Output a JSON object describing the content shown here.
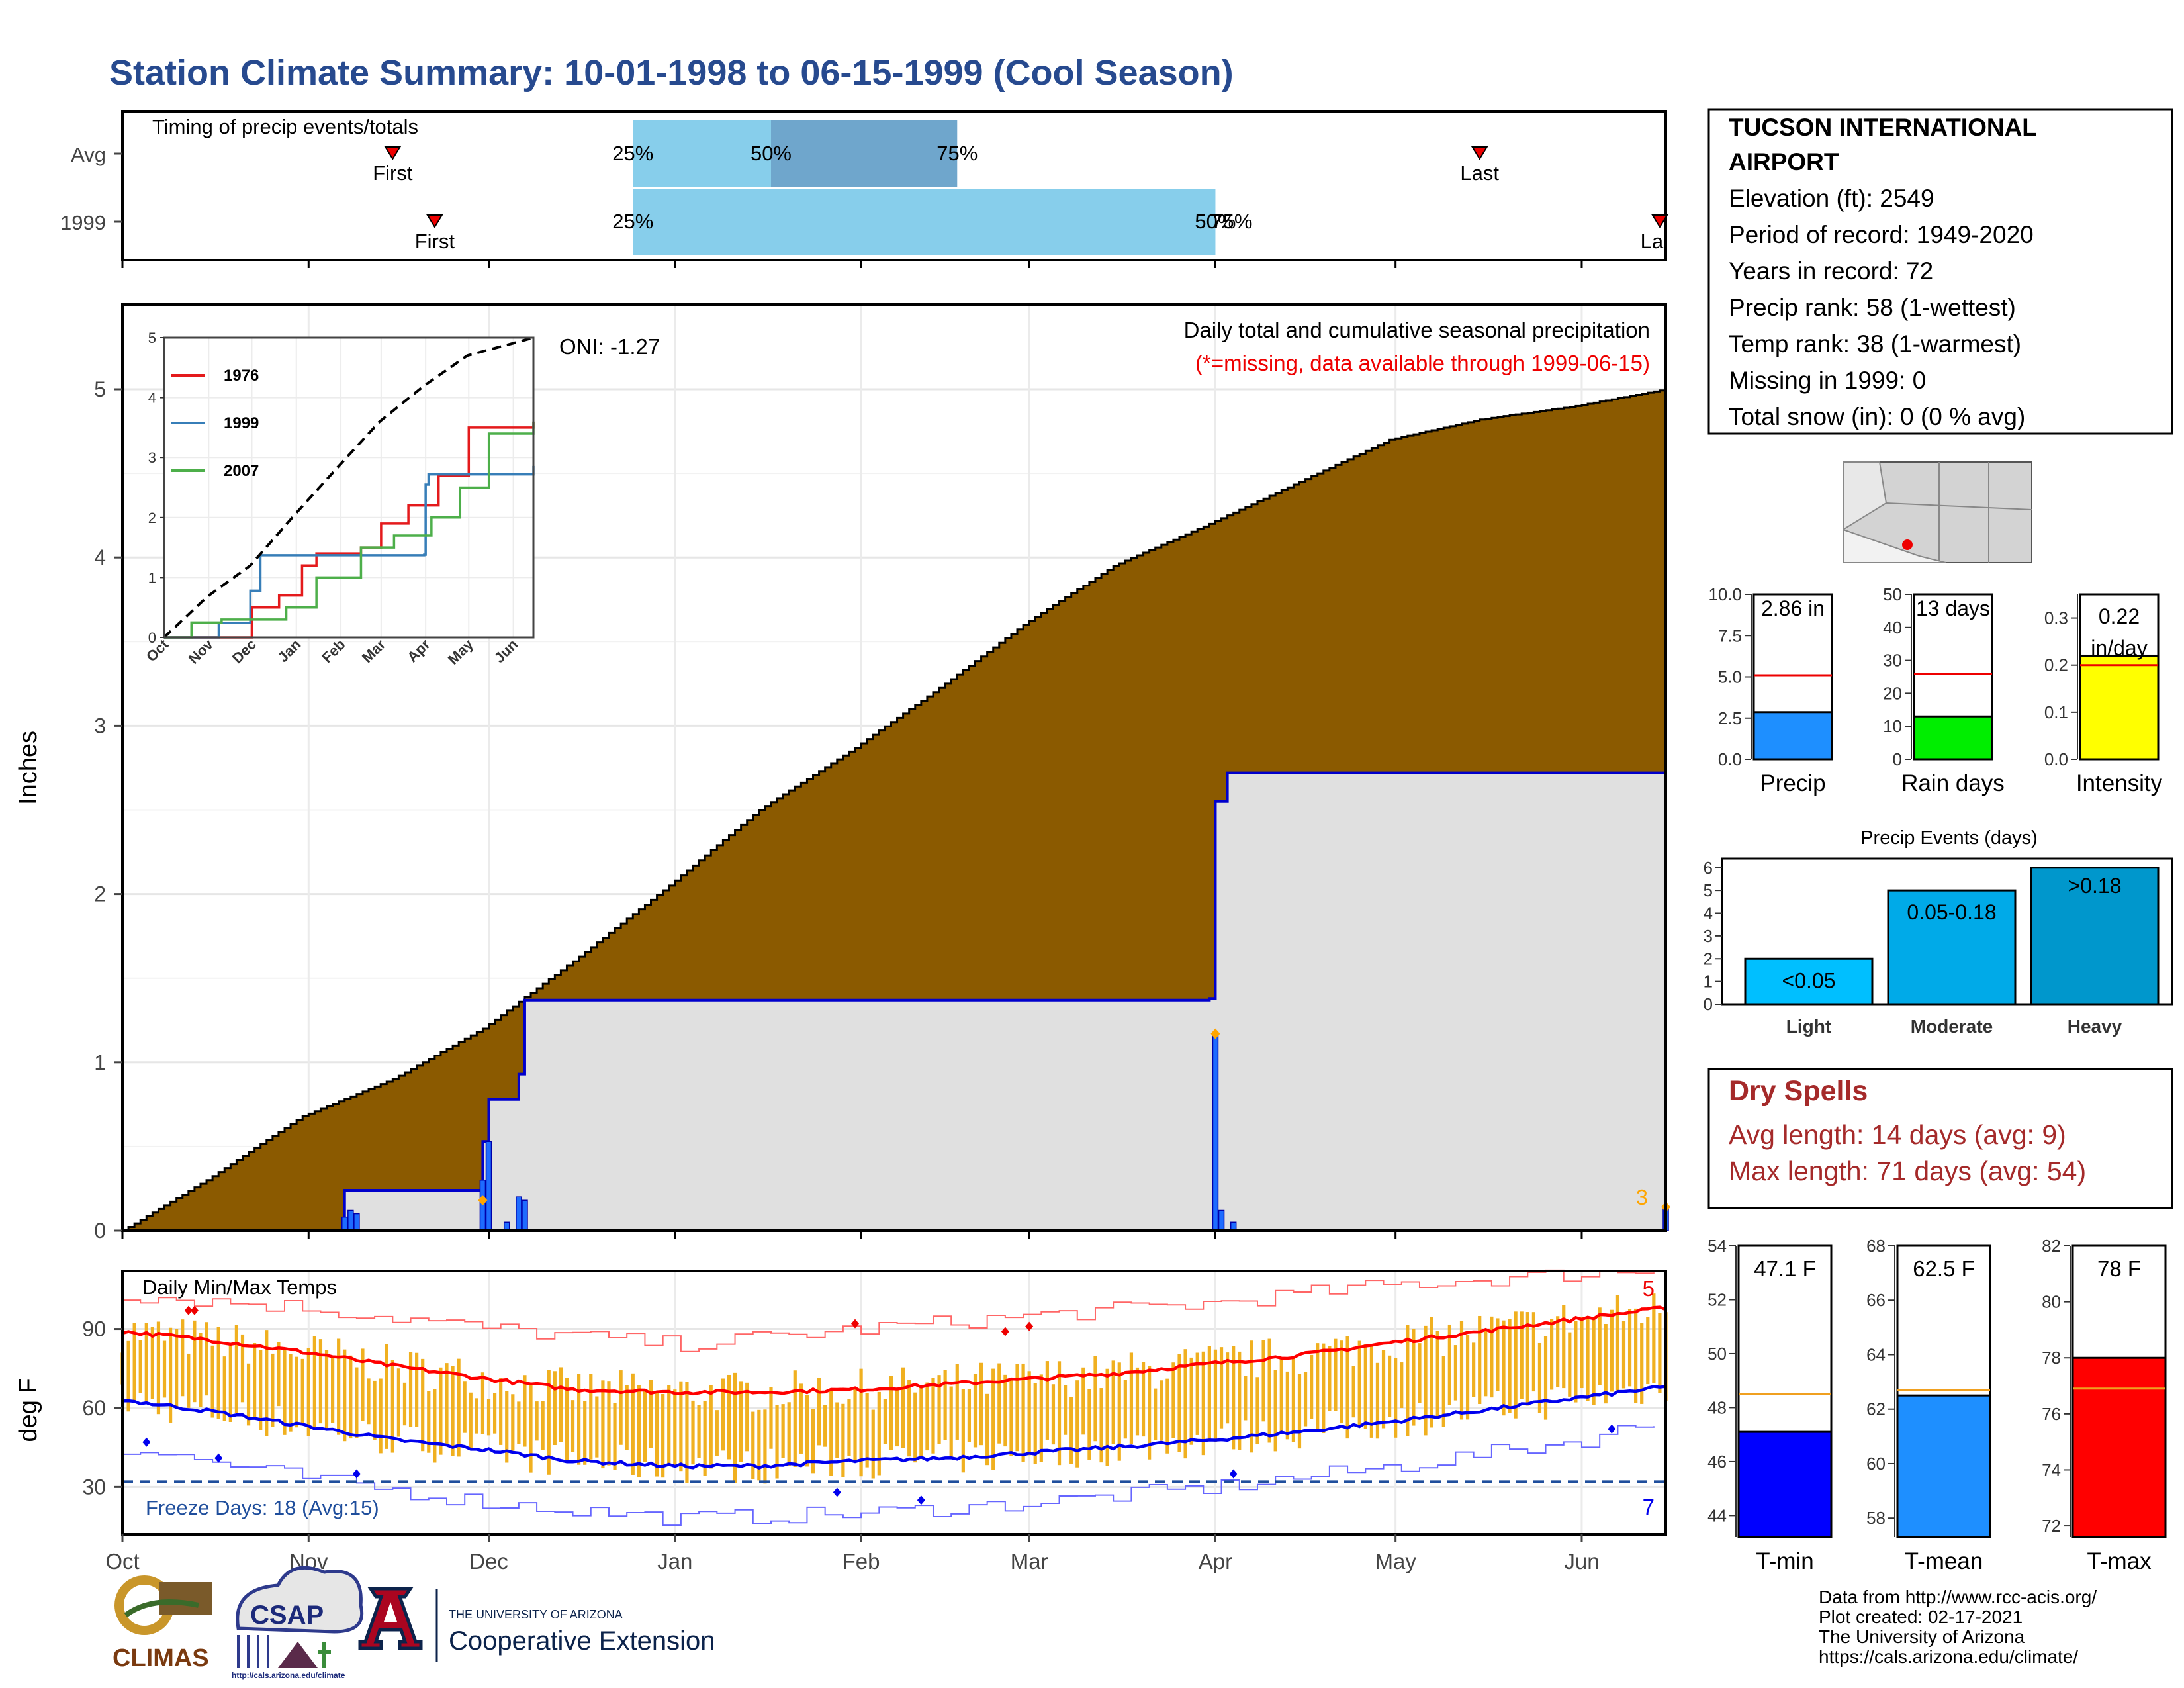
{
  "title": "Station Climate Summary: 10-01-1998 to 06-15-1999 (Cool Season)",
  "timing": {
    "label": "Timing of precip events/totals",
    "rows": [
      {
        "name": "Avg",
        "first_label": "First",
        "last_label": "Last",
        "first_date": "1998-11-15",
        "last_date": "1999-05-15",
        "p25_label": "25%",
        "p50_label": "50%",
        "p75_label": "75%",
        "p25_date": "1998-12-25",
        "p50_date": "1999-01-17",
        "p75_date": "1999-02-17"
      },
      {
        "name": "1999",
        "first_label": "First",
        "last_label": "Last",
        "first_date": "1998-11-22",
        "last_date": "1999-06-14",
        "p25_label": "25%",
        "p50_label": "50%",
        "p75_label": "75%",
        "p25_date": "1998-12-25",
        "p50_date": "1999-04-01",
        "p75_date": "1999-04-01"
      }
    ]
  },
  "station": {
    "name": "TUCSON INTERNATIONAL AIRPORT",
    "lines": [
      "Elevation (ft): 2549",
      "Period of record: 1949-2020",
      "Years in record: 72",
      "Precip rank: 58 (1-wettest)",
      "Temp rank: 38 (1-warmest)",
      "Missing in 1999: 0",
      "Total snow (in): 0 (0 % avg)"
    ]
  },
  "precip_panel": {
    "ylabel": "Inches",
    "oni_label": "ONI: -1.27",
    "title": "Daily total and cumulative seasonal precipitation",
    "subtitle": "(*=missing, data available through 1999-06-15)",
    "corner_label": "3",
    "y_ticks": [
      "0",
      "1",
      "2",
      "3",
      "4",
      "5"
    ],
    "colors": {
      "avg_fill": "#8b5a00",
      "year_fill": "#e0e0e0",
      "year_line": "#0000cc",
      "daily_bar": "#1e6cff",
      "max_marker": "#ffa500"
    }
  },
  "chart_data": [
    {
      "type": "area",
      "title": "Daily total and cumulative seasonal precipitation",
      "ylabel": "Inches",
      "ylim": [
        0,
        5.5
      ],
      "series": [
        {
          "name": "Avg",
          "x": [
            "1998-10-01",
            "1998-10-15",
            "1998-10-31",
            "1998-11-15",
            "1998-11-30",
            "1998-12-15",
            "1998-12-31",
            "1999-01-15",
            "1999-01-31",
            "1999-02-15",
            "1999-02-28",
            "1999-03-15",
            "1999-03-31",
            "1999-04-15",
            "1999-04-30",
            "1999-05-15",
            "1999-05-31",
            "1999-06-15"
          ],
          "values": [
            0.0,
            0.3,
            0.68,
            0.9,
            1.2,
            1.6,
            2.05,
            2.5,
            2.87,
            3.25,
            3.6,
            3.95,
            4.2,
            4.45,
            4.7,
            4.82,
            4.9,
            5.0
          ]
        },
        {
          "name": "1999",
          "x": [
            "1998-10-01",
            "1998-11-07",
            "1998-11-08",
            "1998-11-30",
            "1998-12-01",
            "1998-12-06",
            "1998-12-07",
            "1999-03-31",
            "1999-04-01",
            "1999-04-03",
            "1999-06-14",
            "1999-06-15"
          ],
          "values": [
            0.0,
            0.24,
            0.24,
            0.53,
            0.78,
            0.93,
            1.37,
            1.38,
            2.55,
            2.72,
            2.72,
            2.86
          ]
        }
      ],
      "daily_bars": {
        "x": [
          "1998-11-07",
          "1998-11-08",
          "1998-11-09",
          "1998-11-30",
          "1998-12-01",
          "1998-12-04",
          "1998-12-06",
          "1998-12-07",
          "1999-04-01",
          "1999-04-02",
          "1999-04-04",
          "1999-06-15"
        ],
        "values": [
          0.08,
          0.12,
          0.1,
          0.3,
          0.53,
          0.05,
          0.2,
          0.18,
          1.17,
          0.12,
          0.05,
          0.14
        ]
      }
    },
    {
      "type": "line",
      "title": "",
      "ylim": [
        0,
        5
      ],
      "x_ticks": [
        "Oct",
        "Nov",
        "Dec",
        "Jan",
        "Feb",
        "Mar",
        "Apr",
        "May",
        "Jun"
      ],
      "y_ticks": [
        "0",
        "1",
        "2",
        "3",
        "4",
        "5"
      ],
      "series": [
        {
          "name": "1976",
          "color": "#e41a1c",
          "x": [
            "1998-10-01",
            "1998-11-30",
            "1998-12-01",
            "1998-12-20",
            "1999-01-05",
            "1999-01-15",
            "1999-02-15",
            "1999-03-01",
            "1999-03-20",
            "1999-04-01",
            "1999-04-10",
            "1999-05-01",
            "1999-06-15"
          ],
          "values": [
            0.0,
            0.0,
            0.5,
            0.7,
            1.2,
            1.4,
            1.5,
            1.9,
            2.2,
            2.2,
            2.7,
            3.5,
            3.6
          ]
        },
        {
          "name": "1999",
          "color": "#377eb8",
          "x": [
            "1998-10-01",
            "1998-11-07",
            "1998-11-08",
            "1998-11-30",
            "1998-12-07",
            "1999-03-31",
            "1999-04-01",
            "1999-04-03",
            "1999-06-15"
          ],
          "values": [
            0.0,
            0.0,
            0.24,
            0.78,
            1.37,
            1.38,
            2.55,
            2.72,
            2.86
          ]
        },
        {
          "name": "2007",
          "color": "#4daf4a",
          "x": [
            "1998-10-01",
            "1998-10-20",
            "1998-11-10",
            "1998-12-25",
            "1999-01-15",
            "1999-02-15",
            "1999-03-10",
            "1999-04-05",
            "1999-04-25",
            "1999-05-15",
            "1999-06-15"
          ],
          "values": [
            0.0,
            0.25,
            0.3,
            0.5,
            1.0,
            1.5,
            1.7,
            2.0,
            2.5,
            3.4,
            3.6
          ]
        },
        {
          "name": "Avg",
          "color": "#000000",
          "dashed": true,
          "x": [
            "1998-10-01",
            "1998-10-31",
            "1998-11-30",
            "1998-12-31",
            "1999-01-31",
            "1999-02-28",
            "1999-03-31",
            "1999-04-30",
            "1999-05-31",
            "1999-06-15"
          ],
          "values": [
            0.0,
            0.68,
            1.2,
            2.05,
            2.87,
            3.6,
            4.2,
            4.7,
            4.9,
            5.0
          ]
        }
      ]
    },
    {
      "type": "bar",
      "title": "",
      "categories": [
        "Precip",
        "Rain days",
        "Intensity"
      ],
      "charts": [
        {
          "category": "Precip",
          "label": "2.86 in",
          "value": 2.86,
          "avg": 5.1,
          "ylim": [
            0,
            10
          ],
          "ticks": [
            "0.0",
            "2.5",
            "5.0",
            "7.5",
            "10.0"
          ],
          "color": "#1e8fff"
        },
        {
          "category": "Rain days",
          "label": "13 days",
          "value": 13,
          "avg": 26,
          "ylim": [
            0,
            50
          ],
          "ticks": [
            "0",
            "10",
            "20",
            "30",
            "40",
            "50"
          ],
          "color": "#00ee00"
        },
        {
          "category": "Intensity",
          "label": "0.22 in/day",
          "value": 0.22,
          "avg": 0.2,
          "ylim": [
            0,
            0.35
          ],
          "ticks": [
            "0.0",
            "0.1",
            "0.2",
            "0.3"
          ],
          "color": "#ffff00"
        }
      ]
    },
    {
      "type": "bar",
      "title": "Precip Events (days)",
      "categories": [
        "Light",
        "Moderate",
        "Heavy"
      ],
      "bar_labels": [
        "<0.05",
        "0.05-0.18",
        ">0.18"
      ],
      "values": [
        2,
        5,
        6
      ],
      "ylim": [
        0,
        6.4
      ],
      "y_ticks": [
        "0",
        "1",
        "2",
        "3",
        "4",
        "5",
        "6"
      ],
      "colors": [
        "#00bfff",
        "#00aae8",
        "#0097cc"
      ]
    },
    {
      "type": "bar",
      "title": "Daily Min/Max Temps",
      "ylabel": "deg F",
      "ylim": [
        12,
        112
      ],
      "y_ticks": [
        "30",
        "60",
        "90"
      ],
      "x_ticks": [
        "Oct",
        "Nov",
        "Dec",
        "Jan",
        "Feb",
        "Mar",
        "Apr",
        "May",
        "Jun"
      ],
      "freeze_label": "Freeze Days: 18 (Avg:15)",
      "freeze_line": 32,
      "count_high": "5",
      "count_low": "7",
      "series": [
        {
          "name": "Avg Max",
          "color": "#ff0000",
          "x": [
            "1998-10-01",
            "1998-10-15",
            "1998-11-01",
            "1998-11-15",
            "1998-12-01",
            "1998-12-15",
            "1999-01-01",
            "1999-01-15",
            "1999-02-01",
            "1999-02-15",
            "1999-03-01",
            "1999-03-15",
            "1999-04-01",
            "1999-04-15",
            "1999-05-01",
            "1999-05-15",
            "1999-06-01",
            "1999-06-15"
          ],
          "values": [
            89,
            86,
            81,
            76,
            71,
            67,
            66,
            66,
            67,
            69,
            71,
            73,
            77,
            80,
            85,
            89,
            94,
            98
          ]
        },
        {
          "name": "Avg Min",
          "color": "#0000ee",
          "x": [
            "1998-10-01",
            "1998-10-15",
            "1998-11-01",
            "1998-11-15",
            "1998-12-01",
            "1998-12-15",
            "1999-01-01",
            "1999-01-15",
            "1999-02-01",
            "1999-02-15",
            "1999-03-01",
            "1999-03-15",
            "1999-04-01",
            "1999-04-15",
            "1999-05-01",
            "1999-05-15",
            "1999-06-01",
            "1999-06-15"
          ],
          "values": [
            63,
            59,
            53,
            48,
            44,
            40,
            38,
            38,
            40,
            41,
            43,
            45,
            48,
            51,
            55,
            59,
            64,
            68
          ]
        },
        {
          "name": "Record High",
          "color": "#ff6666",
          "x": [
            "1998-10-01",
            "1998-11-01",
            "1998-12-01",
            "1999-01-01",
            "1999-02-01",
            "1999-03-01",
            "1999-04-01",
            "1999-05-01",
            "1999-06-01",
            "1999-06-15"
          ],
          "values": [
            103,
            98,
            90,
            84,
            90,
            95,
            100,
            107,
            111,
            113
          ]
        },
        {
          "name": "Record Low",
          "color": "#6666ff",
          "x": [
            "1998-10-01",
            "1998-11-01",
            "1998-12-01",
            "1999-01-01",
            "1999-02-01",
            "1999-03-01",
            "1999-04-01",
            "1999-05-01",
            "1999-06-01",
            "1999-06-15"
          ],
          "values": [
            45,
            33,
            24,
            18,
            20,
            24,
            30,
            38,
            48,
            56
          ]
        }
      ]
    },
    {
      "type": "bar",
      "title": "",
      "categories": [
        "T-min",
        "T-mean",
        "T-max"
      ],
      "charts": [
        {
          "category": "T-min",
          "label": "47.1 F",
          "value": 47.1,
          "avg": 48.5,
          "ylim": [
            43.2,
            54
          ],
          "ticks": [
            "44",
            "46",
            "48",
            "50",
            "52",
            "54"
          ],
          "color": "#0000ff"
        },
        {
          "category": "T-mean",
          "label": "62.5 F",
          "value": 62.5,
          "avg": 62.7,
          "ylim": [
            57.3,
            68
          ],
          "ticks": [
            "58",
            "60",
            "62",
            "64",
            "66",
            "68"
          ],
          "color": "#1e8fff"
        },
        {
          "category": "T-max",
          "label": "78 F",
          "value": 78,
          "avg": 76.9,
          "ylim": [
            71.6,
            82
          ],
          "ticks": [
            "72",
            "74",
            "76",
            "78",
            "80",
            "82"
          ],
          "color": "#ff0000"
        }
      ]
    }
  ],
  "x_axis": {
    "ticks": [
      "Oct",
      "Nov",
      "Dec",
      "Jan",
      "Feb",
      "Mar",
      "Apr",
      "May",
      "Jun"
    ]
  },
  "dry_spells": {
    "title": "Dry Spells",
    "avg": "Avg length: 14 days (avg: 9)",
    "max": "Max length: 71 days (avg: 54)"
  },
  "credits": [
    "Data from http://www.rcc-acis.org/",
    "Plot created: 02-17-2021",
    "The University of Arizona",
    "https://cals.arizona.edu/climate/"
  ],
  "logos": {
    "climas": "CLIMAS",
    "csap": "CSAP",
    "csap_url": "http://cals.arizona.edu/climate",
    "ua_line1": "THE UNIVERSITY OF ARIZONA",
    "ua_line2": "Cooperative Extension"
  }
}
